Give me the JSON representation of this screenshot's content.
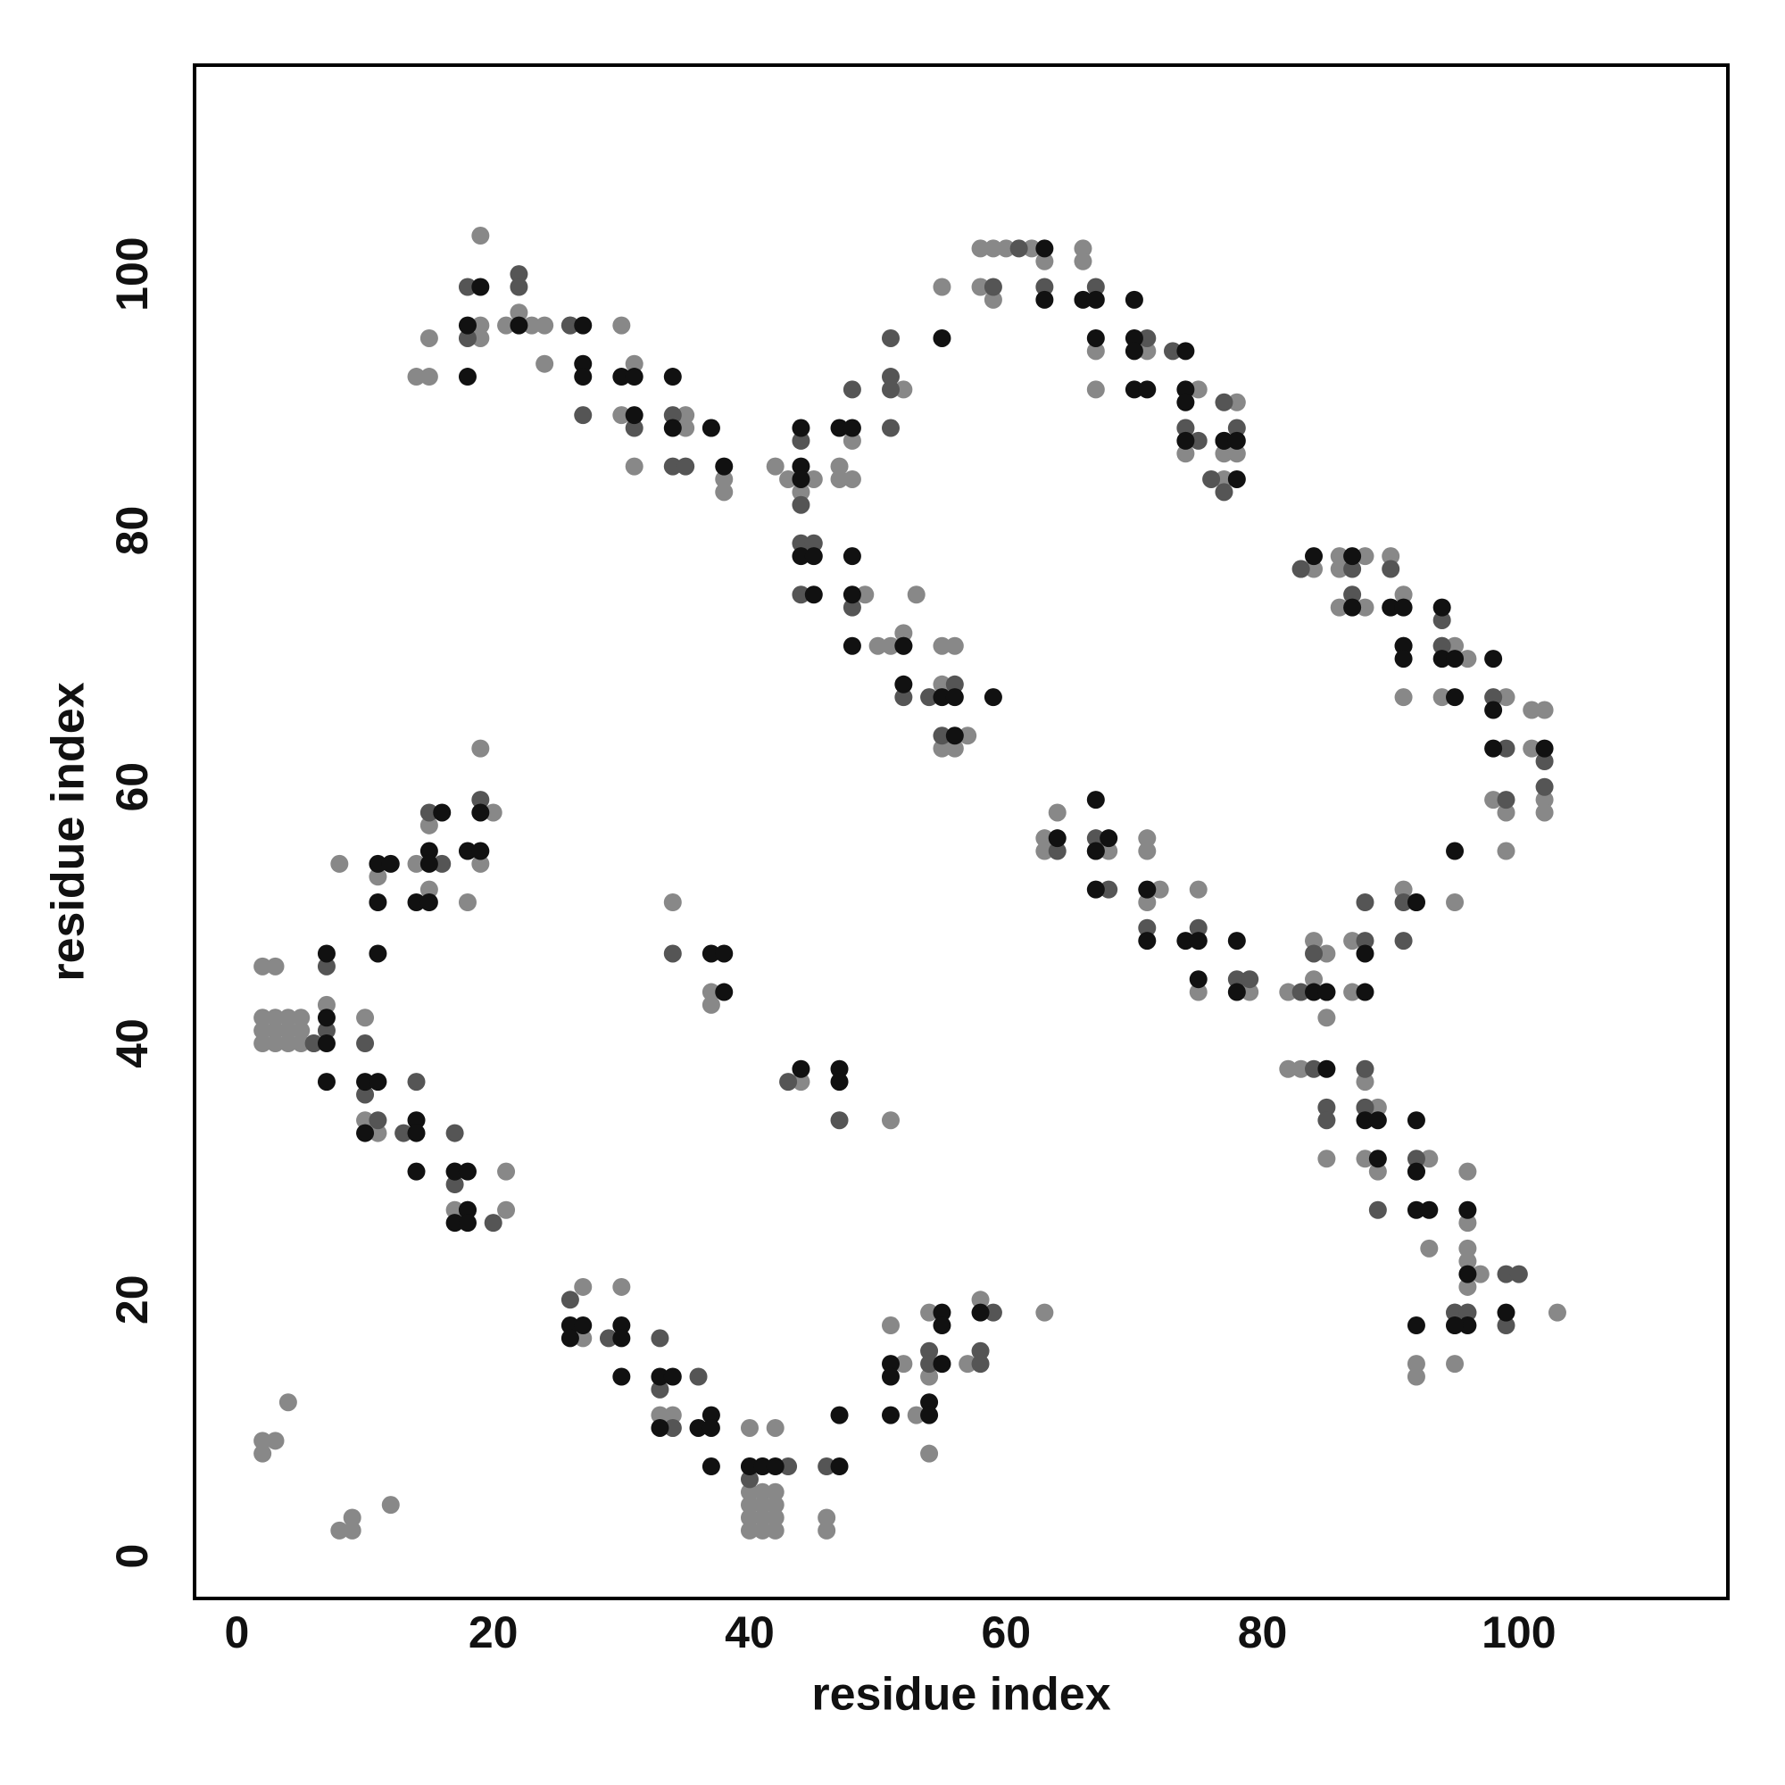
{
  "chart_data": {
    "type": "scatter",
    "xlabel": "residue index",
    "ylabel": "residue index",
    "xlim": [
      -3.3,
      116.3
    ],
    "ylim": [
      -3.3,
      116.3
    ],
    "xticks": [
      0,
      20,
      40,
      60,
      80,
      100
    ],
    "yticks": [
      0,
      20,
      40,
      60,
      80,
      100
    ],
    "grid": false,
    "series": [
      {
        "color": "#888888",
        "x": [
          14,
          15,
          15,
          19,
          19,
          21,
          22,
          23,
          24,
          24,
          26,
          30,
          31,
          30,
          31,
          35,
          35,
          37,
          38,
          38,
          19,
          42,
          43,
          44,
          45,
          47,
          47,
          48,
          48,
          52,
          53,
          52,
          55,
          56,
          57,
          55,
          56,
          49,
          51,
          50,
          55,
          55,
          58,
          58,
          59,
          60,
          62,
          63,
          66,
          66,
          67,
          67,
          71,
          75,
          74,
          74,
          77,
          77,
          78,
          78,
          59,
          83,
          84,
          86,
          86,
          86,
          88,
          88,
          90,
          91,
          91,
          94,
          94,
          95,
          96,
          99,
          101,
          102,
          98,
          99,
          99,
          101,
          102,
          102,
          63,
          64,
          68,
          71,
          71,
          72,
          75,
          75,
          79,
          82,
          84,
          84,
          85,
          87,
          87,
          91,
          95,
          71,
          63,
          82,
          83,
          85,
          85,
          88,
          88,
          88,
          89,
          89,
          93,
          93,
          96,
          96,
          96,
          96,
          96,
          97,
          103,
          92,
          92,
          95,
          95,
          96,
          2,
          3,
          2,
          2,
          2,
          3,
          3,
          3,
          4,
          4,
          5,
          5,
          5,
          6,
          8,
          10,
          10,
          11,
          11,
          14,
          15,
          15,
          18,
          19,
          19,
          20,
          17,
          21,
          21,
          7,
          4,
          34,
          37,
          37,
          44,
          51,
          27,
          27,
          30,
          33,
          34,
          34,
          40,
          40,
          40,
          40,
          40,
          41,
          41,
          41,
          41,
          42,
          42,
          42,
          42,
          42,
          46,
          46,
          51,
          52,
          53,
          54,
          54,
          54,
          55,
          57,
          58,
          63,
          2,
          2,
          3,
          4,
          8,
          9,
          9,
          12
        ],
        "y": [
          92,
          92,
          95,
          103,
          95,
          96,
          97,
          96,
          96,
          93,
          96,
          96,
          93,
          89,
          85,
          89,
          88,
          88,
          84,
          83,
          96,
          85,
          84,
          83,
          84,
          85,
          84,
          84,
          87,
          91,
          75,
          72,
          71,
          71,
          64,
          63,
          63,
          75,
          71,
          71,
          68,
          99,
          102,
          99,
          98,
          102,
          102,
          101,
          102,
          101,
          94,
          91,
          94,
          91,
          86,
          88,
          84,
          86,
          90,
          86,
          102,
          77,
          77,
          78,
          74,
          77,
          78,
          74,
          78,
          75,
          67,
          67,
          71,
          71,
          70,
          67,
          66,
          66,
          59,
          58,
          55,
          63,
          59,
          58,
          56,
          58,
          55,
          56,
          55,
          52,
          52,
          44,
          44,
          44,
          48,
          45,
          47,
          48,
          44,
          52,
          51,
          51,
          55,
          38,
          38,
          42,
          31,
          37,
          35,
          31,
          35,
          30,
          31,
          24,
          30,
          26,
          24,
          23,
          21,
          22,
          19,
          15,
          14,
          15,
          19,
          19,
          46,
          46,
          42,
          41,
          40,
          42,
          41,
          40,
          42,
          40,
          42,
          41,
          40,
          40,
          54,
          42,
          34,
          33,
          53,
          54,
          52,
          57,
          51,
          63,
          54,
          58,
          27,
          30,
          27,
          43,
          41,
          51,
          43,
          44,
          37,
          34,
          21,
          17,
          21,
          11,
          11,
          10,
          10,
          5,
          4,
          3,
          2,
          5,
          4,
          3,
          2,
          10,
          5,
          4,
          3,
          2,
          3,
          2,
          18,
          15,
          11,
          19,
          14,
          8,
          15,
          15,
          20,
          19,
          9,
          8,
          9,
          12,
          2,
          3,
          2,
          4
        ]
      },
      {
        "color": "#555555",
        "x": [
          18,
          18,
          22,
          22,
          27,
          34,
          34,
          35,
          31,
          26,
          44,
          44,
          44,
          45,
          44,
          48,
          51,
          51,
          51,
          51,
          48,
          52,
          52,
          55,
          56,
          54,
          59,
          61,
          63,
          67,
          71,
          73,
          74,
          75,
          77,
          77,
          78,
          77,
          76,
          83,
          87,
          87,
          90,
          94,
          94,
          98,
          99,
          99,
          102,
          102,
          91,
          64,
          67,
          67,
          68,
          71,
          75,
          75,
          78,
          79,
          83,
          85,
          88,
          88,
          91,
          92,
          91,
          84,
          84,
          85,
          85,
          88,
          88,
          89,
          92,
          92,
          95,
          96,
          99,
          100,
          99,
          95,
          7,
          7,
          6,
          10,
          10,
          11,
          13,
          14,
          16,
          19,
          17,
          17,
          20,
          15,
          18,
          17,
          34,
          43,
          47,
          26,
          29,
          33,
          33,
          34,
          36,
          40,
          41,
          43,
          46,
          54,
          54,
          58,
          59,
          58,
          40
        ],
        "y": [
          99,
          95,
          100,
          99,
          89,
          89,
          85,
          85,
          88,
          96,
          87,
          82,
          79,
          79,
          75,
          91,
          95,
          92,
          91,
          88,
          74,
          71,
          67,
          64,
          68,
          67,
          99,
          102,
          99,
          99,
          95,
          94,
          88,
          87,
          90,
          83,
          88,
          87,
          84,
          77,
          77,
          75,
          77,
          73,
          71,
          67,
          63,
          59,
          62,
          60,
          71,
          55,
          56,
          55,
          52,
          49,
          49,
          48,
          45,
          45,
          44,
          44,
          51,
          48,
          51,
          51,
          48,
          47,
          38,
          35,
          34,
          35,
          38,
          27,
          31,
          30,
          19,
          19,
          22,
          22,
          18,
          18,
          46,
          41,
          40,
          40,
          36,
          34,
          33,
          37,
          54,
          59,
          33,
          29,
          26,
          58,
          27,
          30,
          47,
          37,
          34,
          20,
          17,
          17,
          13,
          10,
          14,
          6,
          7,
          7,
          7,
          16,
          15,
          16,
          19,
          15,
          7
        ]
      },
      {
        "color": "#111111",
        "x": [
          18,
          18,
          19,
          22,
          27,
          27,
          27,
          30,
          31,
          31,
          34,
          34,
          37,
          38,
          44,
          44,
          44,
          44,
          45,
          45,
          47,
          48,
          48,
          48,
          48,
          52,
          52,
          55,
          56,
          56,
          59,
          55,
          63,
          63,
          66,
          67,
          67,
          70,
          70,
          70,
          70,
          71,
          74,
          74,
          74,
          74,
          77,
          78,
          78,
          84,
          87,
          87,
          90,
          91,
          91,
          91,
          94,
          94,
          95,
          95,
          98,
          98,
          98,
          102,
          95,
          64,
          67,
          67,
          67,
          68,
          71,
          71,
          74,
          75,
          75,
          78,
          78,
          84,
          85,
          88,
          88,
          92,
          85,
          88,
          89,
          89,
          92,
          92,
          92,
          93,
          96,
          96,
          96,
          99,
          92,
          95,
          7,
          7,
          7,
          7,
          10,
          10,
          11,
          11,
          11,
          11,
          12,
          14,
          15,
          15,
          15,
          14,
          14,
          14,
          16,
          18,
          19,
          19,
          17,
          18,
          18,
          17,
          18,
          37,
          38,
          38,
          44,
          47,
          47,
          26,
          26,
          27,
          30,
          30,
          30,
          33,
          33,
          34,
          36,
          37,
          37,
          37,
          40,
          41,
          42,
          47,
          47,
          51,
          51,
          51,
          54,
          54,
          55,
          55,
          55,
          58
        ],
        "y": [
          92,
          96,
          99,
          96,
          96,
          93,
          92,
          92,
          92,
          89,
          92,
          88,
          88,
          85,
          88,
          85,
          84,
          78,
          78,
          75,
          88,
          88,
          78,
          75,
          71,
          71,
          68,
          67,
          67,
          64,
          67,
          95,
          102,
          98,
          98,
          98,
          95,
          98,
          95,
          94,
          91,
          91,
          94,
          91,
          90,
          87,
          87,
          87,
          84,
          78,
          78,
          74,
          74,
          74,
          71,
          70,
          74,
          70,
          70,
          67,
          70,
          66,
          63,
          63,
          55,
          56,
          59,
          55,
          52,
          56,
          52,
          48,
          48,
          48,
          45,
          48,
          44,
          44,
          44,
          47,
          44,
          51,
          38,
          34,
          34,
          31,
          34,
          30,
          27,
          27,
          27,
          22,
          18,
          19,
          18,
          18,
          47,
          42,
          40,
          37,
          37,
          33,
          54,
          51,
          47,
          37,
          54,
          51,
          55,
          54,
          51,
          34,
          33,
          30,
          58,
          55,
          55,
          58,
          30,
          30,
          27,
          26,
          26,
          47,
          47,
          44,
          38,
          38,
          37,
          18,
          17,
          18,
          18,
          17,
          14,
          14,
          10,
          14,
          10,
          11,
          10,
          7,
          7,
          7,
          7,
          11,
          7,
          15,
          14,
          11,
          12,
          11,
          19,
          18,
          15,
          19
        ]
      }
    ]
  }
}
